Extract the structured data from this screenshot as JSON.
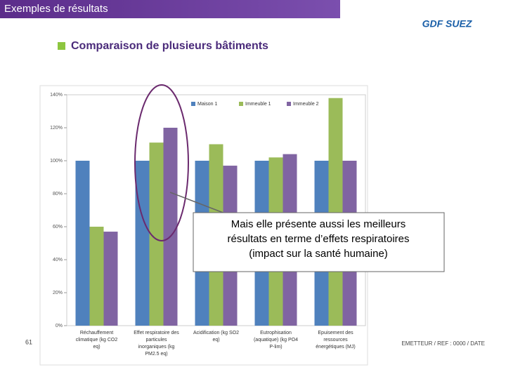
{
  "slide": {
    "title": "Exemples de résultats",
    "logo": "GDF SUEZ",
    "bullet": "Comparaison de plusieurs bâtiments",
    "callout": [
      "Mais elle présente aussi les meilleurs",
      "résultats en terme d’effets respiratoires",
      "(impact sur la santé humaine)"
    ],
    "page": "61",
    "footer": "EMETTEUR / REF : 0000 / DATE"
  },
  "chart_data": {
    "type": "bar",
    "categories": [
      [
        "Réchauffement",
        "climatique (kg CO2",
        "eq)"
      ],
      [
        "Effet respiratoire des",
        "particules",
        "inorganiques (kg",
        "PM2.5 eq)"
      ],
      [
        "Acidification (kg SO2",
        "eq)"
      ],
      [
        "Eutrophisation",
        "(aquatique) (kg PO4",
        "P-lim)"
      ],
      [
        "Epuisement des",
        "ressources",
        "énergétiques (MJ)"
      ]
    ],
    "series": [
      {
        "name": "Maison 1",
        "color": "#4f81bd",
        "values": [
          100,
          100,
          100,
          100,
          100
        ]
      },
      {
        "name": "Immeuble 1",
        "color": "#9bbb59",
        "values": [
          60,
          111,
          110,
          102,
          138
        ]
      },
      {
        "name": "Immeuble 2",
        "color": "#8064a2",
        "values": [
          57,
          120,
          97,
          104,
          100
        ]
      }
    ],
    "ylim": [
      0,
      140
    ],
    "yticks": [
      {
        "value": 0,
        "label": "0%"
      },
      {
        "value": 20,
        "label": "20%"
      },
      {
        "value": 40,
        "label": "40%"
      },
      {
        "value": 60,
        "label": "60%"
      },
      {
        "value": 80,
        "label": "80%"
      },
      {
        "value": 100,
        "label": "100%"
      },
      {
        "value": 120,
        "label": "120%"
      },
      {
        "value": 140,
        "label": "140%"
      }
    ],
    "legend": "top"
  }
}
